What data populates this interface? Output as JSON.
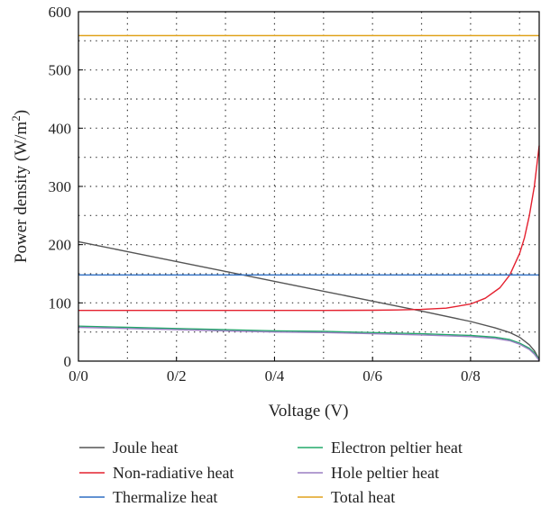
{
  "chart_data": {
    "type": "line",
    "title": "",
    "xlabel": "Voltage (V)",
    "ylabel_main": "Power density (W/m",
    "ylabel_sup": "2",
    "ylabel_close": ")",
    "xlim": [
      0,
      0.94
    ],
    "ylim": [
      0,
      600
    ],
    "x_ticks": [
      {
        "value": 0.0,
        "label": "0/0"
      },
      {
        "value": 0.2,
        "label": "0/2"
      },
      {
        "value": 0.4,
        "label": "0/4"
      },
      {
        "value": 0.6,
        "label": "0/6"
      },
      {
        "value": 0.8,
        "label": "0/8"
      }
    ],
    "y_ticks": [
      {
        "value": 0,
        "label": "0"
      },
      {
        "value": 100,
        "label": "100"
      },
      {
        "value": 200,
        "label": "200"
      },
      {
        "value": 300,
        "label": "300"
      },
      {
        "value": 400,
        "label": "400"
      },
      {
        "value": 500,
        "label": "500"
      },
      {
        "value": 600,
        "label": "600"
      }
    ],
    "x_minor_grid": [
      0.1,
      0.3,
      0.5,
      0.7,
      0.9
    ],
    "y_minor_grid": [
      50,
      150,
      250,
      350,
      450,
      550
    ],
    "grid": true,
    "legend_position": "bottom",
    "series": [
      {
        "name": "Joule heat",
        "color": "#555555",
        "x": [
          0,
          0.1,
          0.2,
          0.3,
          0.4,
          0.5,
          0.6,
          0.7,
          0.8,
          0.85,
          0.88,
          0.9,
          0.92,
          0.93,
          0.94
        ],
        "y": [
          205,
          188,
          171,
          154,
          137,
          120,
          103,
          86,
          68,
          57,
          49,
          41,
          28,
          18,
          3
        ]
      },
      {
        "name": "Non-radiative heat",
        "color": "#e4202f",
        "x": [
          0,
          0.1,
          0.2,
          0.3,
          0.4,
          0.5,
          0.6,
          0.65,
          0.7,
          0.75,
          0.8,
          0.83,
          0.86,
          0.88,
          0.9,
          0.91,
          0.92,
          0.93,
          0.94
        ],
        "y": [
          87,
          87,
          87,
          87,
          87,
          87,
          87.3,
          87.8,
          88.8,
          91,
          98,
          108,
          126,
          148,
          185,
          212,
          250,
          300,
          370
        ]
      },
      {
        "name": "Thermalize heat",
        "color": "#2f6fc4",
        "x": [
          0,
          0.94
        ],
        "y": [
          148,
          148
        ]
      },
      {
        "name": "Electron peltier heat",
        "color": "#22a86a",
        "x": [
          0,
          0.1,
          0.2,
          0.3,
          0.4,
          0.5,
          0.6,
          0.7,
          0.8,
          0.85,
          0.88,
          0.9,
          0.92,
          0.93,
          0.94
        ],
        "y": [
          60,
          58,
          56,
          54,
          52,
          51,
          49,
          47,
          44,
          41,
          37,
          31,
          22,
          14,
          2
        ]
      },
      {
        "name": "Hole peltier heat",
        "color": "#9a7fc2",
        "x": [
          0,
          0.1,
          0.2,
          0.3,
          0.4,
          0.5,
          0.6,
          0.7,
          0.8,
          0.85,
          0.88,
          0.9,
          0.92,
          0.93,
          0.94
        ],
        "y": [
          58,
          56,
          54,
          52,
          50,
          49,
          47,
          45,
          42,
          39,
          35,
          29,
          20,
          12,
          1
        ]
      },
      {
        "name": "Total heat",
        "color": "#e0a21c",
        "x": [
          0,
          0.94
        ],
        "y": [
          559,
          559
        ]
      }
    ]
  }
}
